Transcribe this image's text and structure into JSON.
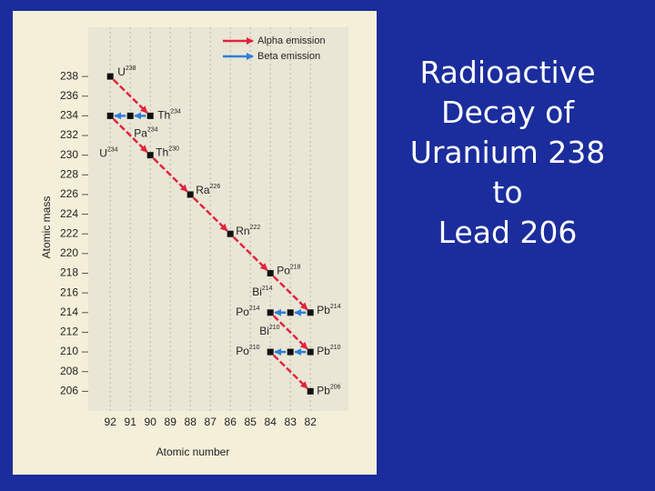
{
  "slide": {
    "title_lines": [
      "Radioactive",
      "Decay of",
      "Uranium 238",
      "to",
      "Lead 206"
    ]
  },
  "chart_data": {
    "type": "decay_chain",
    "x_label": "Atomic number",
    "y_label": "Atomic mass",
    "xlim": [
      93.1,
      80.1
    ],
    "xticks": [
      92,
      91,
      90,
      89,
      88,
      87,
      86,
      85,
      84,
      83,
      82
    ],
    "ylim": [
      204,
      243
    ],
    "yticks": [
      206,
      208,
      210,
      212,
      214,
      216,
      218,
      220,
      222,
      224,
      226,
      228,
      230,
      232,
      234,
      236,
      238
    ],
    "grid": true,
    "legend": "top",
    "series": [
      {
        "name": "Alpha emission",
        "color": "#e2243c"
      },
      {
        "name": "Beta emission",
        "color": "#2f7fd8"
      }
    ],
    "nodes": [
      {
        "element": "U",
        "x": 92,
        "y": 238
      },
      {
        "element": "Th",
        "x": 90,
        "y": 234
      },
      {
        "element": "Pa",
        "x": 91,
        "y": 234
      },
      {
        "element": "U",
        "x": 92,
        "y": 234
      },
      {
        "element": "Th",
        "x": 90,
        "y": 230
      },
      {
        "element": "Ra",
        "x": 88,
        "y": 226
      },
      {
        "element": "Rn",
        "x": 86,
        "y": 222
      },
      {
        "element": "Po",
        "x": 84,
        "y": 218
      },
      {
        "element": "Pb",
        "x": 82,
        "y": 214
      },
      {
        "element": "Bi",
        "x": 83,
        "y": 214
      },
      {
        "element": "Po",
        "x": 84,
        "y": 214
      },
      {
        "element": "Pb",
        "x": 82,
        "y": 210
      },
      {
        "element": "Bi",
        "x": 83,
        "y": 210
      },
      {
        "element": "Po",
        "x": 84,
        "y": 210
      },
      {
        "element": "Pb",
        "x": 82,
        "y": 206
      }
    ],
    "transitions": [
      {
        "from": 0,
        "to": 1,
        "series": 0
      },
      {
        "from": 1,
        "to": 2,
        "series": 1
      },
      {
        "from": 2,
        "to": 3,
        "series": 1
      },
      {
        "from": 3,
        "to": 4,
        "series": 0
      },
      {
        "from": 4,
        "to": 5,
        "series": 0
      },
      {
        "from": 5,
        "to": 6,
        "series": 0
      },
      {
        "from": 6,
        "to": 7,
        "series": 0
      },
      {
        "from": 7,
        "to": 8,
        "series": 0
      },
      {
        "from": 8,
        "to": 9,
        "series": 1
      },
      {
        "from": 9,
        "to": 10,
        "series": 1
      },
      {
        "from": 10,
        "to": 11,
        "series": 0
      },
      {
        "from": 11,
        "to": 12,
        "series": 1
      },
      {
        "from": 12,
        "to": 13,
        "series": 1
      },
      {
        "from": 13,
        "to": 14,
        "series": 0
      }
    ]
  }
}
